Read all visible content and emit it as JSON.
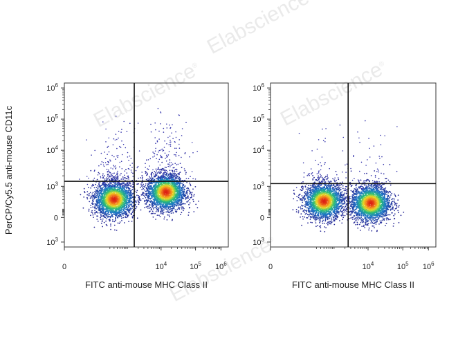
{
  "watermark": "Elabscience",
  "watermark_mark": "®",
  "shared_ylabel": "PerCP/Cy5.5 anti-mouse CD11c",
  "chart_data": [
    {
      "type": "scatter",
      "subtype": "flow-cytometry-density",
      "xlabel": "FITC anti-mouse  MHC Class II",
      "ylabel": "PerCP/Cy5.5 anti-mouse CD11c",
      "x_scale": "biexponential",
      "y_scale": "biexponential",
      "x_ticks": [
        {
          "base": "0",
          "exp": ""
        },
        {
          "base": "10",
          "exp": "4"
        },
        {
          "base": "10",
          "exp": "5"
        },
        {
          "base": "10",
          "exp": "6"
        }
      ],
      "y_ticks": [
        {
          "base": "10",
          "exp": "6"
        },
        {
          "base": "10",
          "exp": "5"
        },
        {
          "base": "10",
          "exp": "4"
        },
        {
          "base": "10",
          "exp": "3"
        },
        {
          "base": "0",
          "exp": ""
        },
        {
          "base": "10",
          "exp": "3"
        }
      ],
      "quadrant_gate": {
        "x": 1500,
        "y": 1400
      },
      "populations": [
        {
          "x": 300,
          "y": 300,
          "share": 0.5
        },
        {
          "x": 14000,
          "y": 600,
          "share": 0.5
        }
      ],
      "scatter_upper": 0.22
    },
    {
      "type": "scatter",
      "subtype": "flow-cytometry-density",
      "xlabel": "FITC anti-mouse  MHC Class II",
      "ylabel": "",
      "x_scale": "biexponential",
      "y_scale": "biexponential",
      "x_ticks": [
        {
          "base": "0",
          "exp": ""
        },
        {
          "base": "10",
          "exp": "4"
        },
        {
          "base": "10",
          "exp": "5"
        },
        {
          "base": "10",
          "exp": "6"
        }
      ],
      "y_ticks": [
        {
          "base": "10",
          "exp": "6"
        },
        {
          "base": "10",
          "exp": "5"
        },
        {
          "base": "10",
          "exp": "4"
        },
        {
          "base": "10",
          "exp": "3"
        },
        {
          "base": "0",
          "exp": ""
        },
        {
          "base": "10",
          "exp": "3"
        }
      ],
      "quadrant_gate": {
        "x": 2500,
        "y": 1200
      },
      "populations": [
        {
          "x": 400,
          "y": 250,
          "share": 0.5
        },
        {
          "x": 12000,
          "y": 200,
          "share": 0.5
        }
      ],
      "scatter_upper": 0.08
    }
  ]
}
